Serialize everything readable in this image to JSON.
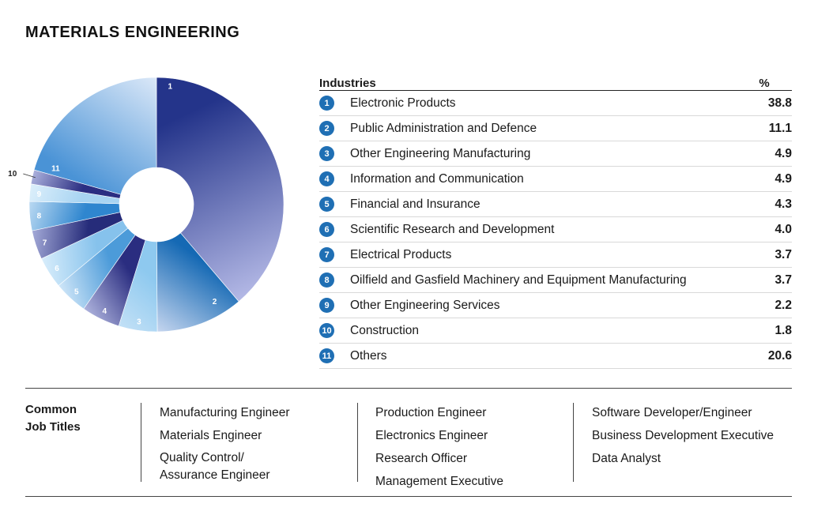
{
  "title": "MATERIALS ENGINEERING",
  "table": {
    "header_industries": "Industries",
    "header_pct": "%"
  },
  "chart_data": {
    "type": "pie",
    "donut": true,
    "slice_labels": [
      "1",
      "2",
      "3",
      "4",
      "5",
      "6",
      "7",
      "8",
      "9",
      "10",
      "11"
    ],
    "categories": [
      "Electronic Products",
      "Public Administration and Defence",
      "Other Engineering Manufacturing",
      "Information and Communication",
      "Financial and Insurance",
      "Scientific Research and Development",
      "Electrical Products",
      "Oilfield and Gasfield Machinery and Equipment Manufacturing",
      "Other Engineering Services",
      "Construction",
      "Others"
    ],
    "values": [
      38.8,
      11.1,
      4.9,
      4.9,
      4.3,
      4.0,
      3.7,
      3.7,
      2.2,
      1.8,
      20.6
    ],
    "value_labels": [
      "38.8",
      "11.1",
      "4.9",
      "4.9",
      "4.3",
      "4.0",
      "3.7",
      "3.7",
      "2.2",
      "1.8",
      "20.6"
    ]
  },
  "colors": {
    "badge": "#1f6fb4",
    "slices": [
      [
        "#24348a",
        "#b4b9e6"
      ],
      [
        "#1569b4",
        "#c6d6ef"
      ],
      [
        "#8ec9ef",
        "#c2e0f6"
      ],
      [
        "#2a2d80",
        "#aeb3dd"
      ],
      [
        "#4c9bd9",
        "#cfe6f8"
      ],
      [
        "#86c2ec",
        "#d8edfb"
      ],
      [
        "#262c7a",
        "#a4aad8"
      ],
      [
        "#2f86cf",
        "#bad9f2"
      ],
      [
        "#a8d4f2",
        "#dceffb"
      ],
      [
        "#2b2e82",
        "#aab0dc"
      ],
      [
        "#4a93d6",
        "#dbe8f8"
      ]
    ]
  },
  "jobs": {
    "label_line1": "Common",
    "label_line2": "Job Titles",
    "col1": [
      "Manufacturing Engineer",
      "Materials Engineer",
      "Quality Control/",
      "Assurance Engineer"
    ],
    "col2": [
      "Production Engineer",
      "Electronics Engineer",
      "Research Officer",
      "Management Executive"
    ],
    "col3": [
      "Software Developer/Engineer",
      "Business Development Executive",
      "Data Analyst"
    ]
  }
}
